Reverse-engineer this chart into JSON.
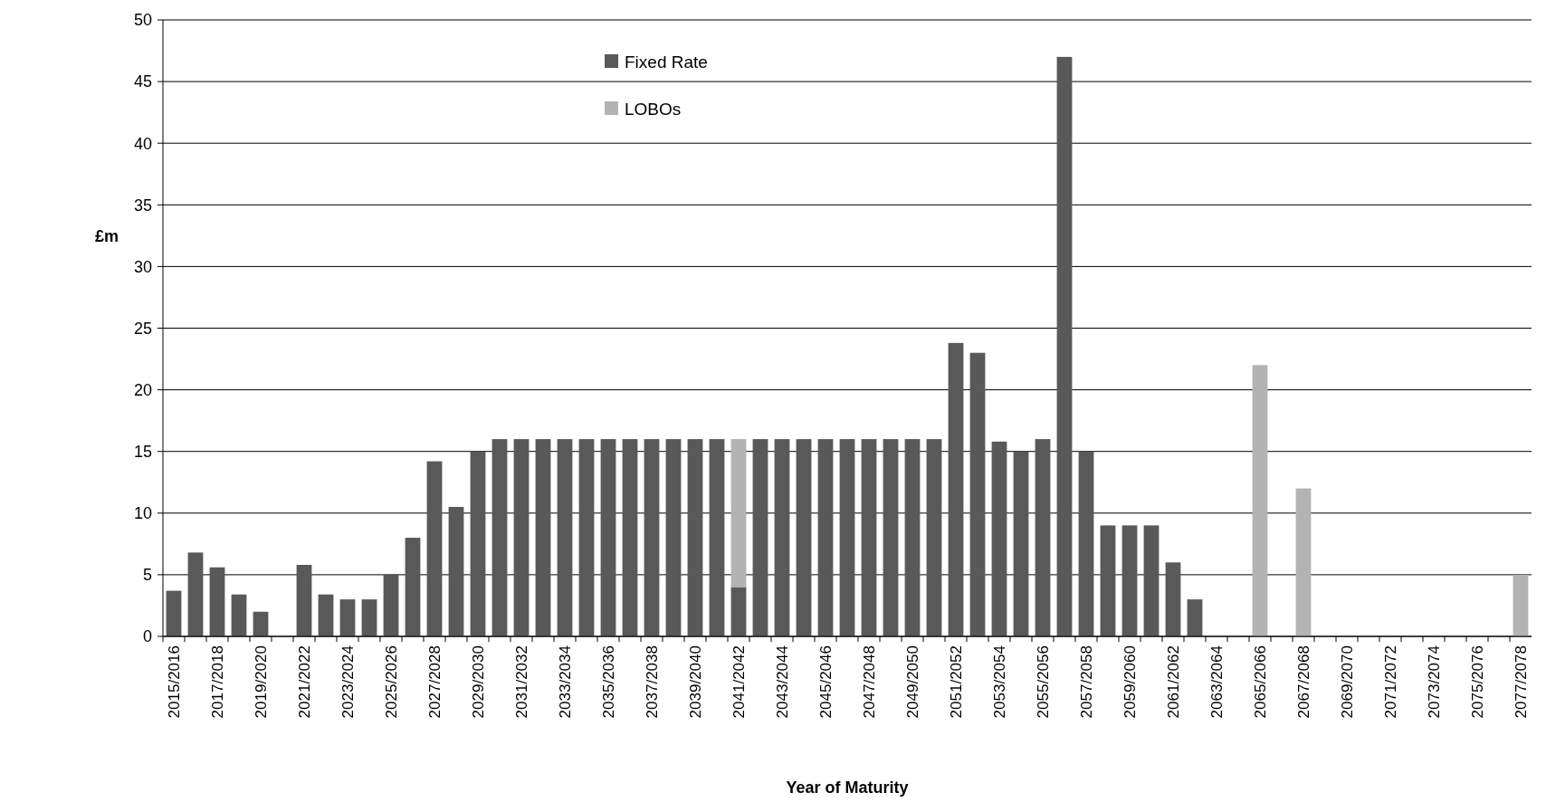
{
  "chart_data": {
    "type": "bar",
    "xlabel": "Year of Maturity",
    "ylabel": "£m",
    "categories": [
      "2015/2016",
      null,
      "2017/2018",
      null,
      "2019/2020",
      null,
      "2021/2022",
      null,
      "2023/2024",
      null,
      "2025/2026",
      null,
      "2027/2028",
      null,
      "2029/2030",
      null,
      "2031/2032",
      null,
      "2033/2034",
      null,
      "2035/2036",
      null,
      "2037/2038",
      null,
      "2039/2040",
      null,
      "2041/2042",
      null,
      "2043/2044",
      null,
      "2045/2046",
      null,
      "2047/2048",
      null,
      "2049/2050",
      null,
      "2051/2052",
      null,
      "2053/2054",
      null,
      "2055/2056",
      null,
      "2057/2058",
      null,
      "2059/2060",
      null,
      "2061/2062",
      null,
      "2063/2064",
      null,
      "2065/2066",
      null,
      "2067/2068",
      null,
      "2069/2070",
      null,
      "2071/2072",
      null,
      "2073/2074",
      null,
      "2075/2076",
      null,
      "2077/2078"
    ],
    "series": [
      {
        "name": "Fixed Rate",
        "color": "#595959",
        "values": [
          3.7,
          6.8,
          5.6,
          3.4,
          2,
          0,
          5.8,
          3.4,
          3,
          3,
          5,
          8,
          14.2,
          10.5,
          15,
          16,
          16,
          16,
          16,
          16,
          16,
          16,
          16,
          16,
          16,
          16,
          4,
          16,
          16,
          16,
          16,
          16,
          16,
          16,
          16,
          16,
          23.8,
          23,
          15.8,
          15,
          16,
          47,
          15,
          9,
          9,
          9,
          6,
          3,
          0,
          0,
          null,
          0,
          null,
          0,
          0,
          0,
          0,
          0,
          0,
          0,
          0,
          0,
          null
        ]
      },
      {
        "name": "LOBOs",
        "color": "#b3b3b3",
        "values": [
          null,
          null,
          null,
          null,
          null,
          null,
          null,
          null,
          null,
          null,
          null,
          null,
          null,
          null,
          null,
          null,
          null,
          null,
          null,
          null,
          null,
          null,
          null,
          null,
          null,
          null,
          12,
          null,
          null,
          null,
          null,
          null,
          null,
          null,
          null,
          null,
          null,
          null,
          null,
          null,
          null,
          null,
          null,
          null,
          null,
          null,
          null,
          null,
          null,
          null,
          22,
          null,
          12,
          null,
          null,
          null,
          null,
          null,
          null,
          null,
          null,
          null,
          5
        ]
      }
    ],
    "stacked": true,
    "ylim": [
      0,
      50
    ],
    "yticks": [
      0,
      5,
      10,
      15,
      20,
      25,
      30,
      35,
      40,
      45,
      50
    ],
    "grid": "y",
    "legend": "top"
  }
}
